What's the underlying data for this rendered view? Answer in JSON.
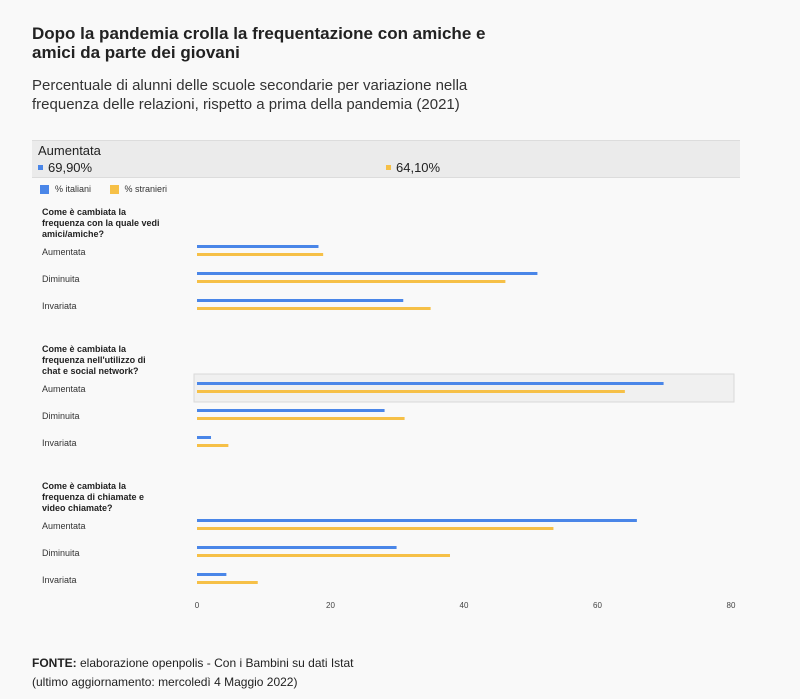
{
  "title": "Dopo la pandemia crolla la frequentazione con amiche e amici da parte dei giovani",
  "subtitle": "Percentuale di alunni delle scuole secondarie per variazione nella frequenza delle relazioni, rispetto a prima della pandemia (2021)",
  "tooltip": {
    "category": "Aumentata",
    "value_1": "69,90%",
    "value_2": "64,10%"
  },
  "colors": {
    "italiani": "#4a86e8",
    "stranieri": "#f6c047"
  },
  "footer": {
    "label": "FONTE:",
    "source": " elaborazione openpolis - Con i Bambini su dati Istat",
    "update": "(ultimo aggiornamento: mercoledì 4 Maggio 2022)"
  },
  "chart_data": {
    "type": "bar",
    "orientation": "horizontal",
    "legend": [
      "% italiani",
      "% stranieri"
    ],
    "legend_position": "top-left",
    "xlim": [
      0,
      80
    ],
    "xticks": [
      "0",
      "20",
      "40",
      "60",
      "80"
    ],
    "groups": [
      {
        "question": "Come è cambiata la frequenza con la quale vedi amici/amiche?",
        "categories": [
          "Aumentata",
          "Diminuita",
          "Invariata"
        ],
        "series": [
          {
            "name": "% italiani",
            "values": [
              18.2,
              51,
              30.9
            ]
          },
          {
            "name": "% stranieri",
            "values": [
              18.9,
              46.2,
              35
            ]
          }
        ]
      },
      {
        "question": "Come è cambiata la frequenza nell'utilizzo di chat e social network?",
        "categories": [
          "Aumentata",
          "Diminuita",
          "Invariata"
        ],
        "series": [
          {
            "name": "% italiani",
            "values": [
              69.9,
              28.1,
              2.1
            ]
          },
          {
            "name": "% stranieri",
            "values": [
              64.1,
              31.1,
              4.7
            ]
          }
        ]
      },
      {
        "question": "Come è cambiata la frequenza di chiamate e video chiamate?",
        "categories": [
          "Aumentata",
          "Diminuita",
          "Invariata"
        ],
        "series": [
          {
            "name": "% italiani",
            "values": [
              65.9,
              29.9,
              4.4
            ]
          },
          {
            "name": "% stranieri",
            "values": [
              53.4,
              37.9,
              9.1
            ]
          }
        ]
      }
    ]
  }
}
